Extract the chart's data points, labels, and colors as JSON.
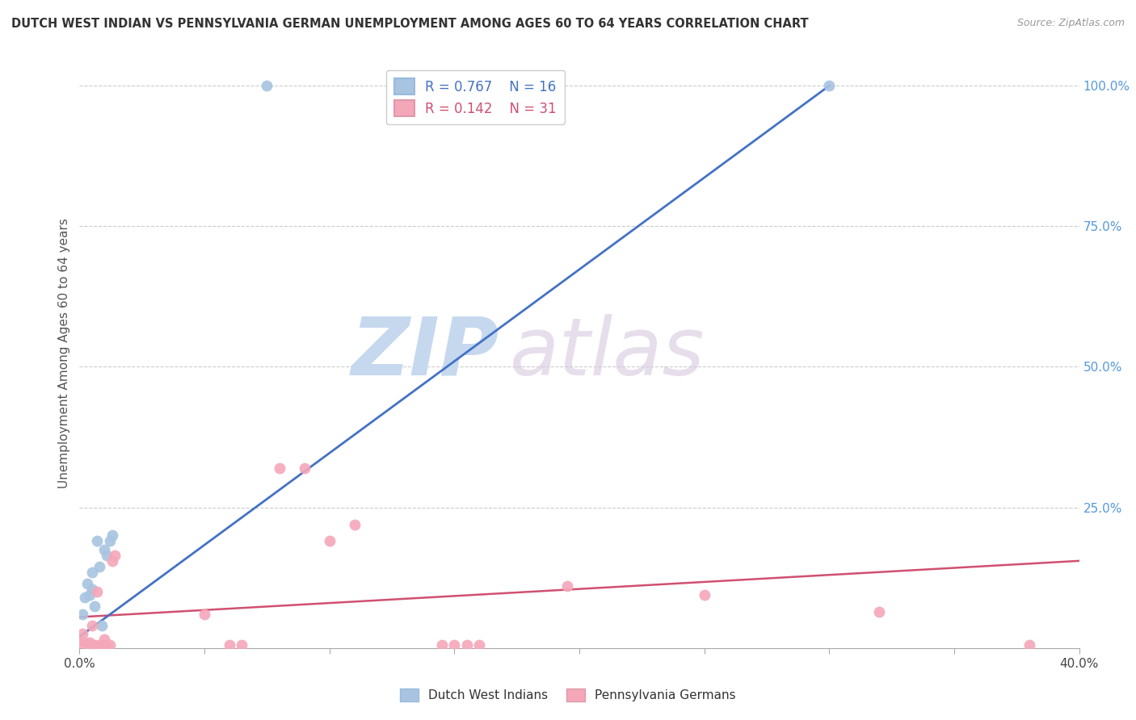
{
  "title": "DUTCH WEST INDIAN VS PENNSYLVANIA GERMAN UNEMPLOYMENT AMONG AGES 60 TO 64 YEARS CORRELATION CHART",
  "source": "Source: ZipAtlas.com",
  "ylabel": "Unemployment Among Ages 60 to 64 years",
  "xlim": [
    0.0,
    0.4
  ],
  "ylim": [
    0.0,
    1.05
  ],
  "x_ticks": [
    0.0,
    0.05,
    0.1,
    0.15,
    0.2,
    0.25,
    0.3,
    0.35,
    0.4
  ],
  "x_tick_labels": [
    "0.0%",
    "",
    "",
    "",
    "",
    "",
    "",
    "",
    "40.0%"
  ],
  "y_ticks_right": [
    0.0,
    0.25,
    0.5,
    0.75,
    1.0
  ],
  "y_tick_labels_right": [
    "",
    "25.0%",
    "50.0%",
    "75.0%",
    "100.0%"
  ],
  "blue_color": "#a8c4e0",
  "blue_line_color": "#4472c4",
  "pink_color": "#f4a7b9",
  "pink_line_color": "#d05070",
  "legend_R_blue": "0.767",
  "legend_N_blue": "16",
  "legend_R_pink": "0.142",
  "legend_N_pink": "31",
  "watermark_zip": "ZIP",
  "watermark_atlas": "atlas",
  "blue_points_x": [
    0.001,
    0.002,
    0.003,
    0.004,
    0.005,
    0.005,
    0.006,
    0.007,
    0.008,
    0.009,
    0.01,
    0.011,
    0.012,
    0.013,
    0.075,
    0.3
  ],
  "blue_points_y": [
    0.06,
    0.09,
    0.115,
    0.095,
    0.105,
    0.135,
    0.075,
    0.19,
    0.145,
    0.04,
    0.175,
    0.165,
    0.19,
    0.2,
    1.0,
    1.0
  ],
  "pink_points_x": [
    0.0,
    0.001,
    0.002,
    0.003,
    0.004,
    0.005,
    0.005,
    0.006,
    0.007,
    0.008,
    0.009,
    0.01,
    0.011,
    0.012,
    0.013,
    0.014,
    0.05,
    0.06,
    0.065,
    0.08,
    0.09,
    0.1,
    0.11,
    0.145,
    0.15,
    0.155,
    0.16,
    0.195,
    0.25,
    0.32,
    0.38
  ],
  "pink_points_y": [
    0.01,
    0.025,
    0.01,
    0.005,
    0.01,
    0.04,
    0.005,
    0.005,
    0.1,
    0.005,
    0.005,
    0.015,
    0.005,
    0.005,
    0.155,
    0.165,
    0.06,
    0.005,
    0.005,
    0.32,
    0.32,
    0.19,
    0.22,
    0.005,
    0.005,
    0.005,
    0.005,
    0.11,
    0.095,
    0.065,
    0.005
  ],
  "blue_line_x": [
    0.0,
    0.3
  ],
  "blue_line_y": [
    0.02,
    1.0
  ],
  "pink_line_x": [
    0.0,
    0.4
  ],
  "pink_line_y": [
    0.055,
    0.155
  ]
}
